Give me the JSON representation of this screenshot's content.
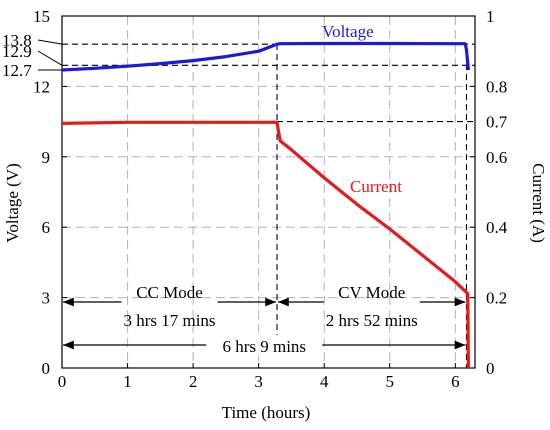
{
  "chart_data": {
    "type": "line",
    "xlabel": "Time (hours)",
    "ylabel_left": "Voltage (V)",
    "ylabel_right": "Current (A)",
    "x_ticks": [
      0,
      1,
      2,
      3,
      4,
      5,
      6
    ],
    "xlim": [
      0,
      6.3
    ],
    "y_left_ticks": [
      0,
      3,
      6,
      9,
      12,
      15
    ],
    "y_left_extra_ticks": [
      12.7,
      12.9,
      13.8
    ],
    "ylim_left": [
      0,
      15
    ],
    "y_right_ticks": [
      0,
      0.2,
      0.4,
      0.6,
      0.8,
      1
    ],
    "y_right_extra_ticks": [
      0.7
    ],
    "ylim_right": [
      0,
      1
    ],
    "grid": true,
    "series": [
      {
        "name": "Voltage",
        "axis": "left",
        "color": "#1a1adb",
        "x": [
          0,
          0.5,
          1,
          1.5,
          2,
          2.5,
          3,
          3.28,
          3.33,
          4,
          5,
          6,
          6.15,
          6.17,
          6.2
        ],
        "y": [
          12.7,
          12.77,
          12.86,
          12.97,
          13.1,
          13.27,
          13.5,
          13.8,
          13.82,
          13.83,
          13.83,
          13.82,
          13.82,
          13.55,
          12.7
        ]
      },
      {
        "name": "Current",
        "axis": "right",
        "color": "#e61a1a",
        "x": [
          0,
          1,
          2,
          3,
          3.28,
          3.3,
          3.33,
          3.5,
          4,
          4.5,
          5,
          5.5,
          6,
          6.17,
          6.19,
          6.2
        ],
        "y": [
          0.695,
          0.698,
          0.698,
          0.698,
          0.698,
          0.675,
          0.645,
          0.62,
          0.54,
          0.465,
          0.395,
          0.32,
          0.245,
          0.215,
          0.21,
          0.0
        ]
      }
    ],
    "annotations": [
      {
        "text": "CC Mode",
        "line2": "3 hrs 17 mins",
        "x_start": 0,
        "x_end": 3.28
      },
      {
        "text": "CV Mode",
        "line2": "2 hrs 52 mins",
        "x_start": 3.28,
        "x_end": 6.17
      },
      {
        "text": "6 hrs 9 mins",
        "x_start": 0,
        "x_end": 6.17
      }
    ]
  }
}
